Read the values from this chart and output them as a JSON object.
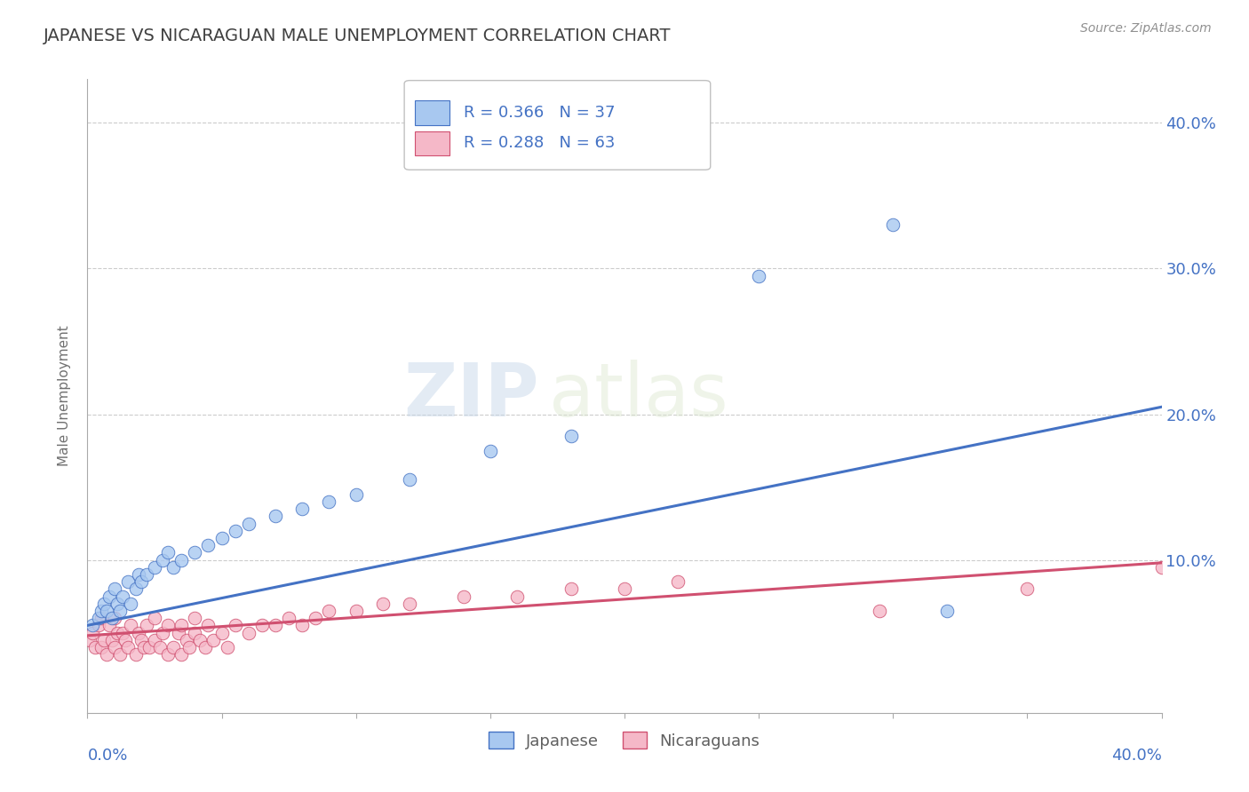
{
  "title": "JAPANESE VS NICARAGUAN MALE UNEMPLOYMENT CORRELATION CHART",
  "source_text": "Source: ZipAtlas.com",
  "ylabel": "Male Unemployment",
  "watermark_zip": "ZIP",
  "watermark_atlas": "atlas",
  "xlim": [
    0.0,
    0.4
  ],
  "ylim": [
    -0.005,
    0.43
  ],
  "yticks": [
    0.0,
    0.1,
    0.2,
    0.3,
    0.4
  ],
  "ytick_labels": [
    "",
    "10.0%",
    "20.0%",
    "30.0%",
    "40.0%"
  ],
  "japanese_color": "#a8c8f0",
  "nicaraguan_color": "#f5b8c8",
  "trend_japanese_color": "#4472c4",
  "trend_nicaraguan_color": "#d05070",
  "legend_R_japanese": "0.366",
  "legend_N_japanese": "37",
  "legend_R_nicaraguan": "0.288",
  "legend_N_nicaraguan": "63",
  "japanese_x": [
    0.002,
    0.004,
    0.005,
    0.006,
    0.007,
    0.008,
    0.009,
    0.01,
    0.011,
    0.012,
    0.013,
    0.015,
    0.016,
    0.018,
    0.019,
    0.02,
    0.022,
    0.025,
    0.028,
    0.03,
    0.032,
    0.035,
    0.04,
    0.045,
    0.05,
    0.055,
    0.06,
    0.07,
    0.08,
    0.09,
    0.1,
    0.12,
    0.15,
    0.18,
    0.25,
    0.3,
    0.32
  ],
  "japanese_y": [
    0.055,
    0.06,
    0.065,
    0.07,
    0.065,
    0.075,
    0.06,
    0.08,
    0.07,
    0.065,
    0.075,
    0.085,
    0.07,
    0.08,
    0.09,
    0.085,
    0.09,
    0.095,
    0.1,
    0.105,
    0.095,
    0.1,
    0.105,
    0.11,
    0.115,
    0.12,
    0.125,
    0.13,
    0.135,
    0.14,
    0.145,
    0.155,
    0.175,
    0.185,
    0.295,
    0.33,
    0.065
  ],
  "nicaraguan_x": [
    0.001,
    0.002,
    0.003,
    0.004,
    0.005,
    0.005,
    0.006,
    0.007,
    0.008,
    0.009,
    0.01,
    0.01,
    0.011,
    0.012,
    0.013,
    0.014,
    0.015,
    0.016,
    0.018,
    0.019,
    0.02,
    0.021,
    0.022,
    0.023,
    0.025,
    0.025,
    0.027,
    0.028,
    0.03,
    0.03,
    0.032,
    0.034,
    0.035,
    0.035,
    0.037,
    0.038,
    0.04,
    0.04,
    0.042,
    0.044,
    0.045,
    0.047,
    0.05,
    0.052,
    0.055,
    0.06,
    0.065,
    0.07,
    0.075,
    0.08,
    0.085,
    0.09,
    0.1,
    0.11,
    0.12,
    0.14,
    0.16,
    0.18,
    0.2,
    0.22,
    0.295,
    0.35,
    0.4
  ],
  "nicaraguan_y": [
    0.045,
    0.05,
    0.04,
    0.055,
    0.04,
    0.06,
    0.045,
    0.035,
    0.055,
    0.045,
    0.04,
    0.06,
    0.05,
    0.035,
    0.05,
    0.045,
    0.04,
    0.055,
    0.035,
    0.05,
    0.045,
    0.04,
    0.055,
    0.04,
    0.045,
    0.06,
    0.04,
    0.05,
    0.035,
    0.055,
    0.04,
    0.05,
    0.035,
    0.055,
    0.045,
    0.04,
    0.05,
    0.06,
    0.045,
    0.04,
    0.055,
    0.045,
    0.05,
    0.04,
    0.055,
    0.05,
    0.055,
    0.055,
    0.06,
    0.055,
    0.06,
    0.065,
    0.065,
    0.07,
    0.07,
    0.075,
    0.075,
    0.08,
    0.08,
    0.085,
    0.065,
    0.08,
    0.095
  ],
  "grid_color": "#cccccc",
  "background_color": "#ffffff",
  "text_color": "#4472c4",
  "title_color": "#404040",
  "source_color": "#909090"
}
